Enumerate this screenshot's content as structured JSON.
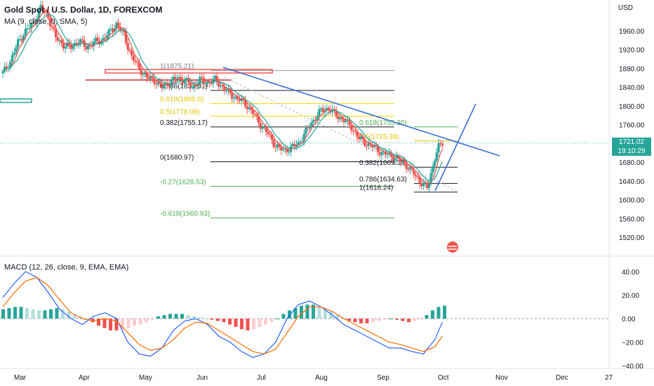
{
  "header": {
    "title": "Gold Spot / U.S. Dollar, 1D, FOREXCOM",
    "indicator": "MA (9, close, 0, SMA, 5)",
    "currency": "USD"
  },
  "current_price": {
    "price": "1721.02",
    "countdown": "19:10:29"
  },
  "macd_label": "MACD (12, 26, close, 9, EMA, EMA)",
  "colors": {
    "up": "#26a69a",
    "down": "#ef5350",
    "trendline": "#3a6fd1",
    "ma_fast": "#ef5350",
    "ma_slow": "#26a69a",
    "macd": "#2962ff",
    "signal": "#ff6d00"
  },
  "chart_data": [
    {
      "type": "candlestick",
      "title": "Gold Spot / U.S. Dollar, 1D, FOREXCOM",
      "x_ticks": [
        "Mar",
        "Apr",
        "May",
        "Jun",
        "Jul",
        "Aug",
        "Sep",
        "Oct",
        "Nov",
        "Dec",
        "27"
      ],
      "y_ticks": [
        1520,
        1560,
        1600,
        1640,
        1680,
        1720,
        1760,
        1800,
        1840,
        1880,
        1920,
        1960
      ],
      "ylim": [
        1500,
        2000
      ],
      "close_path": [
        [
          0,
          1870
        ],
        [
          4,
          1895
        ],
        [
          8,
          1935
        ],
        [
          12,
          1960
        ],
        [
          16,
          1975
        ],
        [
          20,
          2010
        ],
        [
          24,
          1990
        ],
        [
          28,
          1945
        ],
        [
          32,
          1930
        ],
        [
          36,
          1925
        ],
        [
          40,
          1940
        ],
        [
          44,
          1925
        ],
        [
          48,
          1935
        ],
        [
          52,
          1940
        ],
        [
          56,
          1955
        ],
        [
          60,
          1975
        ],
        [
          64,
          1950
        ],
        [
          68,
          1905
        ],
        [
          72,
          1880
        ],
        [
          76,
          1860
        ],
        [
          80,
          1855
        ],
        [
          84,
          1840
        ],
        [
          88,
          1850
        ],
        [
          92,
          1860
        ],
        [
          96,
          1855
        ],
        [
          100,
          1840
        ],
        [
          104,
          1855
        ],
        [
          108,
          1850
        ],
        [
          112,
          1855
        ],
        [
          116,
          1840
        ],
        [
          120,
          1825
        ],
        [
          124,
          1815
        ],
        [
          128,
          1805
        ],
        [
          132,
          1785
        ],
        [
          136,
          1760
        ],
        [
          140,
          1740
        ],
        [
          144,
          1715
        ],
        [
          148,
          1705
        ],
        [
          152,
          1710
        ],
        [
          156,
          1720
        ],
        [
          160,
          1745
        ],
        [
          164,
          1770
        ],
        [
          168,
          1790
        ],
        [
          172,
          1795
        ],
        [
          176,
          1780
        ],
        [
          180,
          1770
        ],
        [
          184,
          1755
        ],
        [
          188,
          1730
        ],
        [
          192,
          1720
        ],
        [
          196,
          1712
        ],
        [
          200,
          1700
        ],
        [
          204,
          1695
        ],
        [
          208,
          1688
        ],
        [
          212,
          1678
        ],
        [
          216,
          1660
        ],
        [
          220,
          1640
        ],
        [
          224,
          1625
        ],
        [
          226,
          1655
        ],
        [
          228,
          1690
        ],
        [
          230,
          1712
        ],
        [
          232,
          1721
        ]
      ],
      "fib_levels": [
        {
          "label": "1(1875.21)",
          "value": 1875.21
        },
        {
          "label": "0.786(1833.01)",
          "value": 1833.01
        },
        {
          "label": "0.618(1805.0)",
          "value": 1805.0
        },
        {
          "label": "0.5(1778.09)",
          "value": 1778.09
        },
        {
          "label": "0.382(1755.17)",
          "value": 1755.17
        },
        {
          "label": "0(1680.97)",
          "value": 1680.97
        },
        {
          "label": "-0.27(1628.53)",
          "value": 1628.53
        },
        {
          "label": "-0.618(1560.93)",
          "value": 1560.93
        }
      ],
      "fib_levels_2": [
        {
          "label": "0.618(1755.30)",
          "value": 1755.3
        },
        {
          "label": "0.5(1725.39)",
          "value": 1725.39
        },
        {
          "label": "0.382(1669.35)",
          "value": 1669.35
        },
        {
          "label": "0.786(1634.63)",
          "value": 1634.63
        },
        {
          "label": "1(1616.24)",
          "value": 1616.24
        }
      ]
    },
    {
      "type": "bar",
      "title": "MACD (12, 26, close, 9, EMA, EMA)",
      "y_ticks": [
        40,
        20,
        0,
        -20,
        -40
      ],
      "ylim": [
        -45,
        45
      ],
      "histogram": [
        8,
        9,
        10,
        10,
        9,
        8,
        7,
        7,
        8,
        9,
        8,
        6,
        4,
        2,
        0,
        -3,
        -6,
        -8,
        -10,
        -10,
        -9,
        -8,
        -6,
        -5,
        -3,
        -1,
        2,
        3,
        4,
        4,
        4,
        3,
        2,
        1,
        0,
        -1,
        -2,
        -3,
        -5,
        -7,
        -9,
        -10,
        -9,
        -7,
        -5,
        -3,
        0,
        4,
        7,
        9,
        11,
        12,
        12,
        10,
        8,
        6,
        3,
        0,
        -2,
        -3,
        -4,
        -4,
        -3,
        -2,
        -1,
        0,
        -1,
        -2,
        -3,
        -2,
        -1,
        3,
        7,
        10,
        11
      ],
      "macd_line": [
        [
          0,
          18
        ],
        [
          6,
          30
        ],
        [
          12,
          40
        ],
        [
          18,
          35
        ],
        [
          24,
          22
        ],
        [
          30,
          8
        ],
        [
          36,
          0
        ],
        [
          42,
          -5
        ],
        [
          48,
          2
        ],
        [
          54,
          5
        ],
        [
          60,
          0
        ],
        [
          66,
          -20
        ],
        [
          72,
          -30
        ],
        [
          78,
          -32
        ],
        [
          84,
          -25
        ],
        [
          90,
          -10
        ],
        [
          96,
          -2
        ],
        [
          102,
          0
        ],
        [
          108,
          -5
        ],
        [
          114,
          -15
        ],
        [
          120,
          -20
        ],
        [
          126,
          -28
        ],
        [
          132,
          -33
        ],
        [
          138,
          -30
        ],
        [
          144,
          -20
        ],
        [
          150,
          0
        ],
        [
          156,
          12
        ],
        [
          162,
          15
        ],
        [
          168,
          10
        ],
        [
          174,
          3
        ],
        [
          180,
          -5
        ],
        [
          186,
          -10
        ],
        [
          192,
          -15
        ],
        [
          198,
          -20
        ],
        [
          204,
          -25
        ],
        [
          210,
          -25
        ],
        [
          216,
          -28
        ],
        [
          222,
          -30
        ],
        [
          228,
          -18
        ],
        [
          232,
          -3
        ]
      ],
      "signal_line": [
        [
          0,
          10
        ],
        [
          6,
          22
        ],
        [
          12,
          32
        ],
        [
          18,
          35
        ],
        [
          24,
          28
        ],
        [
          30,
          16
        ],
        [
          36,
          5
        ],
        [
          42,
          0
        ],
        [
          48,
          -2
        ],
        [
          54,
          0
        ],
        [
          60,
          -2
        ],
        [
          66,
          -12
        ],
        [
          72,
          -22
        ],
        [
          78,
          -27
        ],
        [
          84,
          -25
        ],
        [
          90,
          -18
        ],
        [
          96,
          -8
        ],
        [
          102,
          -3
        ],
        [
          108,
          -4
        ],
        [
          114,
          -10
        ],
        [
          120,
          -16
        ],
        [
          126,
          -22
        ],
        [
          132,
          -28
        ],
        [
          138,
          -30
        ],
        [
          144,
          -26
        ],
        [
          150,
          -12
        ],
        [
          156,
          2
        ],
        [
          162,
          10
        ],
        [
          168,
          10
        ],
        [
          174,
          6
        ],
        [
          180,
          0
        ],
        [
          186,
          -5
        ],
        [
          192,
          -10
        ],
        [
          198,
          -15
        ],
        [
          204,
          -20
        ],
        [
          210,
          -22
        ],
        [
          216,
          -25
        ],
        [
          222,
          -28
        ],
        [
          228,
          -24
        ],
        [
          232,
          -15
        ]
      ]
    }
  ]
}
